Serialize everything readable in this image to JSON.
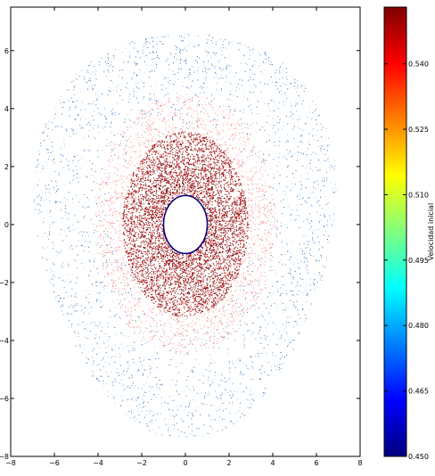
{
  "chart_data": {
    "type": "scatter",
    "title": "",
    "xlabel": "",
    "ylabel": "",
    "xlim": [
      -8,
      8
    ],
    "ylim": [
      -8,
      7.5
    ],
    "x_ticks": [
      -8,
      -6,
      -4,
      -2,
      0,
      2,
      4,
      6,
      8
    ],
    "y_ticks": [
      -8,
      -6,
      -4,
      -2,
      0,
      2,
      4,
      6
    ],
    "grid": false,
    "colorbar": {
      "label": "Velocidad inicial",
      "min": 0.45,
      "max": 0.553,
      "ticks": [
        0.45,
        0.465,
        0.48,
        0.495,
        0.51,
        0.525,
        0.54
      ],
      "tick_labels": [
        "0.450",
        "0.465",
        "0.480",
        "0.495",
        "0.510",
        "0.525",
        "0.540"
      ],
      "colormap": [
        "#00007f",
        "#0000ff",
        "#007fff",
        "#00ffff",
        "#7fff7f",
        "#ffff00",
        "#ff7f00",
        "#ff0000",
        "#7f0000"
      ]
    },
    "distribution": {
      "central_body": {
        "center": [
          0,
          0
        ],
        "radius_x": 1.0,
        "radius_y": 1.0,
        "edge_color": "#00007f"
      },
      "inner_ring": {
        "r_min": 0.9,
        "r_max": 3.2,
        "value": 0.55,
        "color": "#8b0000"
      },
      "mid_ring": {
        "r_min": 2.6,
        "r_max": 4.5,
        "value": 0.53,
        "color": "#ff4d4d"
      },
      "outer_halo": {
        "r_max_x": 7.0,
        "r_max_y": 7.0,
        "value_range": [
          0.47,
          0.49
        ],
        "color": "#2f6fbf"
      }
    }
  }
}
